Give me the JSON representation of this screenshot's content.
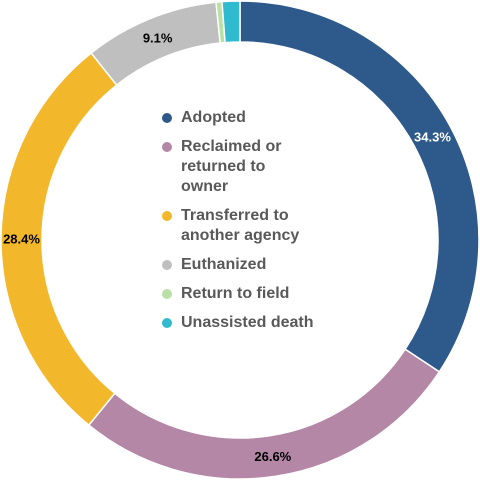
{
  "chart_data": {
    "type": "pie",
    "categories": [
      "Adopted",
      "Reclaimed or\nreturned to\nowner",
      "Transferred to\nanother agency",
      "Euthanized",
      "Return to field",
      "Unassisted death"
    ],
    "values": [
      34.3,
      26.6,
      28.4,
      9.1,
      0.4,
      1.2
    ],
    "data_labels": [
      "34.3%",
      "26.6%",
      "28.4%",
      "9.1%",
      "",
      ""
    ],
    "colors": [
      "#2e5a8b",
      "#b487a6",
      "#f2b72a",
      "#bfbfbf",
      "#b9e0a5",
      "#2fbacf"
    ],
    "label_colors": [
      "#ffffff",
      "#000000",
      "#000000",
      "#000000",
      "#000000",
      "#000000"
    ],
    "hole": true,
    "legend_position": "center"
  }
}
